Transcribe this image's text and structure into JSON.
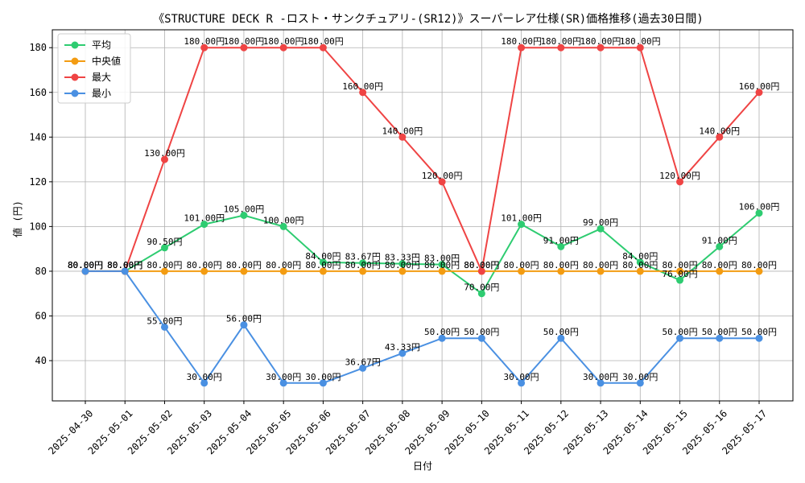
{
  "chart_data": {
    "type": "line",
    "title": "《STRUCTURE DECK R -ロスト・サンクチュアリ-(SR12)》スーパーレア仕様(SR)価格推移(過去30日間)",
    "xlabel": "日付",
    "ylabel": "値 (円)",
    "ylim": [
      22,
      188
    ],
    "yticks": [
      40,
      60,
      80,
      100,
      120,
      140,
      160,
      180
    ],
    "grid": true,
    "legend_position": "top-left",
    "label_suffix": "円",
    "x": [
      "2025-04-30",
      "2025-05-01",
      "2025-05-02",
      "2025-05-03",
      "2025-05-04",
      "2025-05-05",
      "2025-05-06",
      "2025-05-07",
      "2025-05-08",
      "2025-05-09",
      "2025-05-10",
      "2025-05-11",
      "2025-05-12",
      "2025-05-13",
      "2025-05-14",
      "2025-05-15",
      "2025-05-16",
      "2025-05-17"
    ],
    "series": [
      {
        "name": "平均",
        "color": "#2ecc71",
        "values": [
          80,
          80,
          90.5,
          101,
          105,
          100,
          84,
          83.67,
          83.33,
          83,
          70,
          101,
          91,
          99,
          84,
          76,
          91,
          106
        ]
      },
      {
        "name": "中央値",
        "color": "#f39c12",
        "values": [
          80,
          80,
          80,
          80,
          80,
          80,
          80,
          80,
          80,
          80,
          80,
          80,
          80,
          80,
          80,
          80,
          80,
          80
        ]
      },
      {
        "name": "最大",
        "color": "#ef4444",
        "values": [
          80,
          80,
          130,
          180,
          180,
          180,
          180,
          160,
          140,
          120,
          80,
          180,
          180,
          180,
          180,
          120,
          140,
          160
        ]
      },
      {
        "name": "最小",
        "color": "#4a90e2",
        "values": [
          80,
          80,
          55,
          30,
          56,
          30,
          30,
          36.67,
          43.33,
          50,
          50,
          30,
          50,
          30,
          30,
          50,
          50,
          50
        ]
      }
    ]
  }
}
